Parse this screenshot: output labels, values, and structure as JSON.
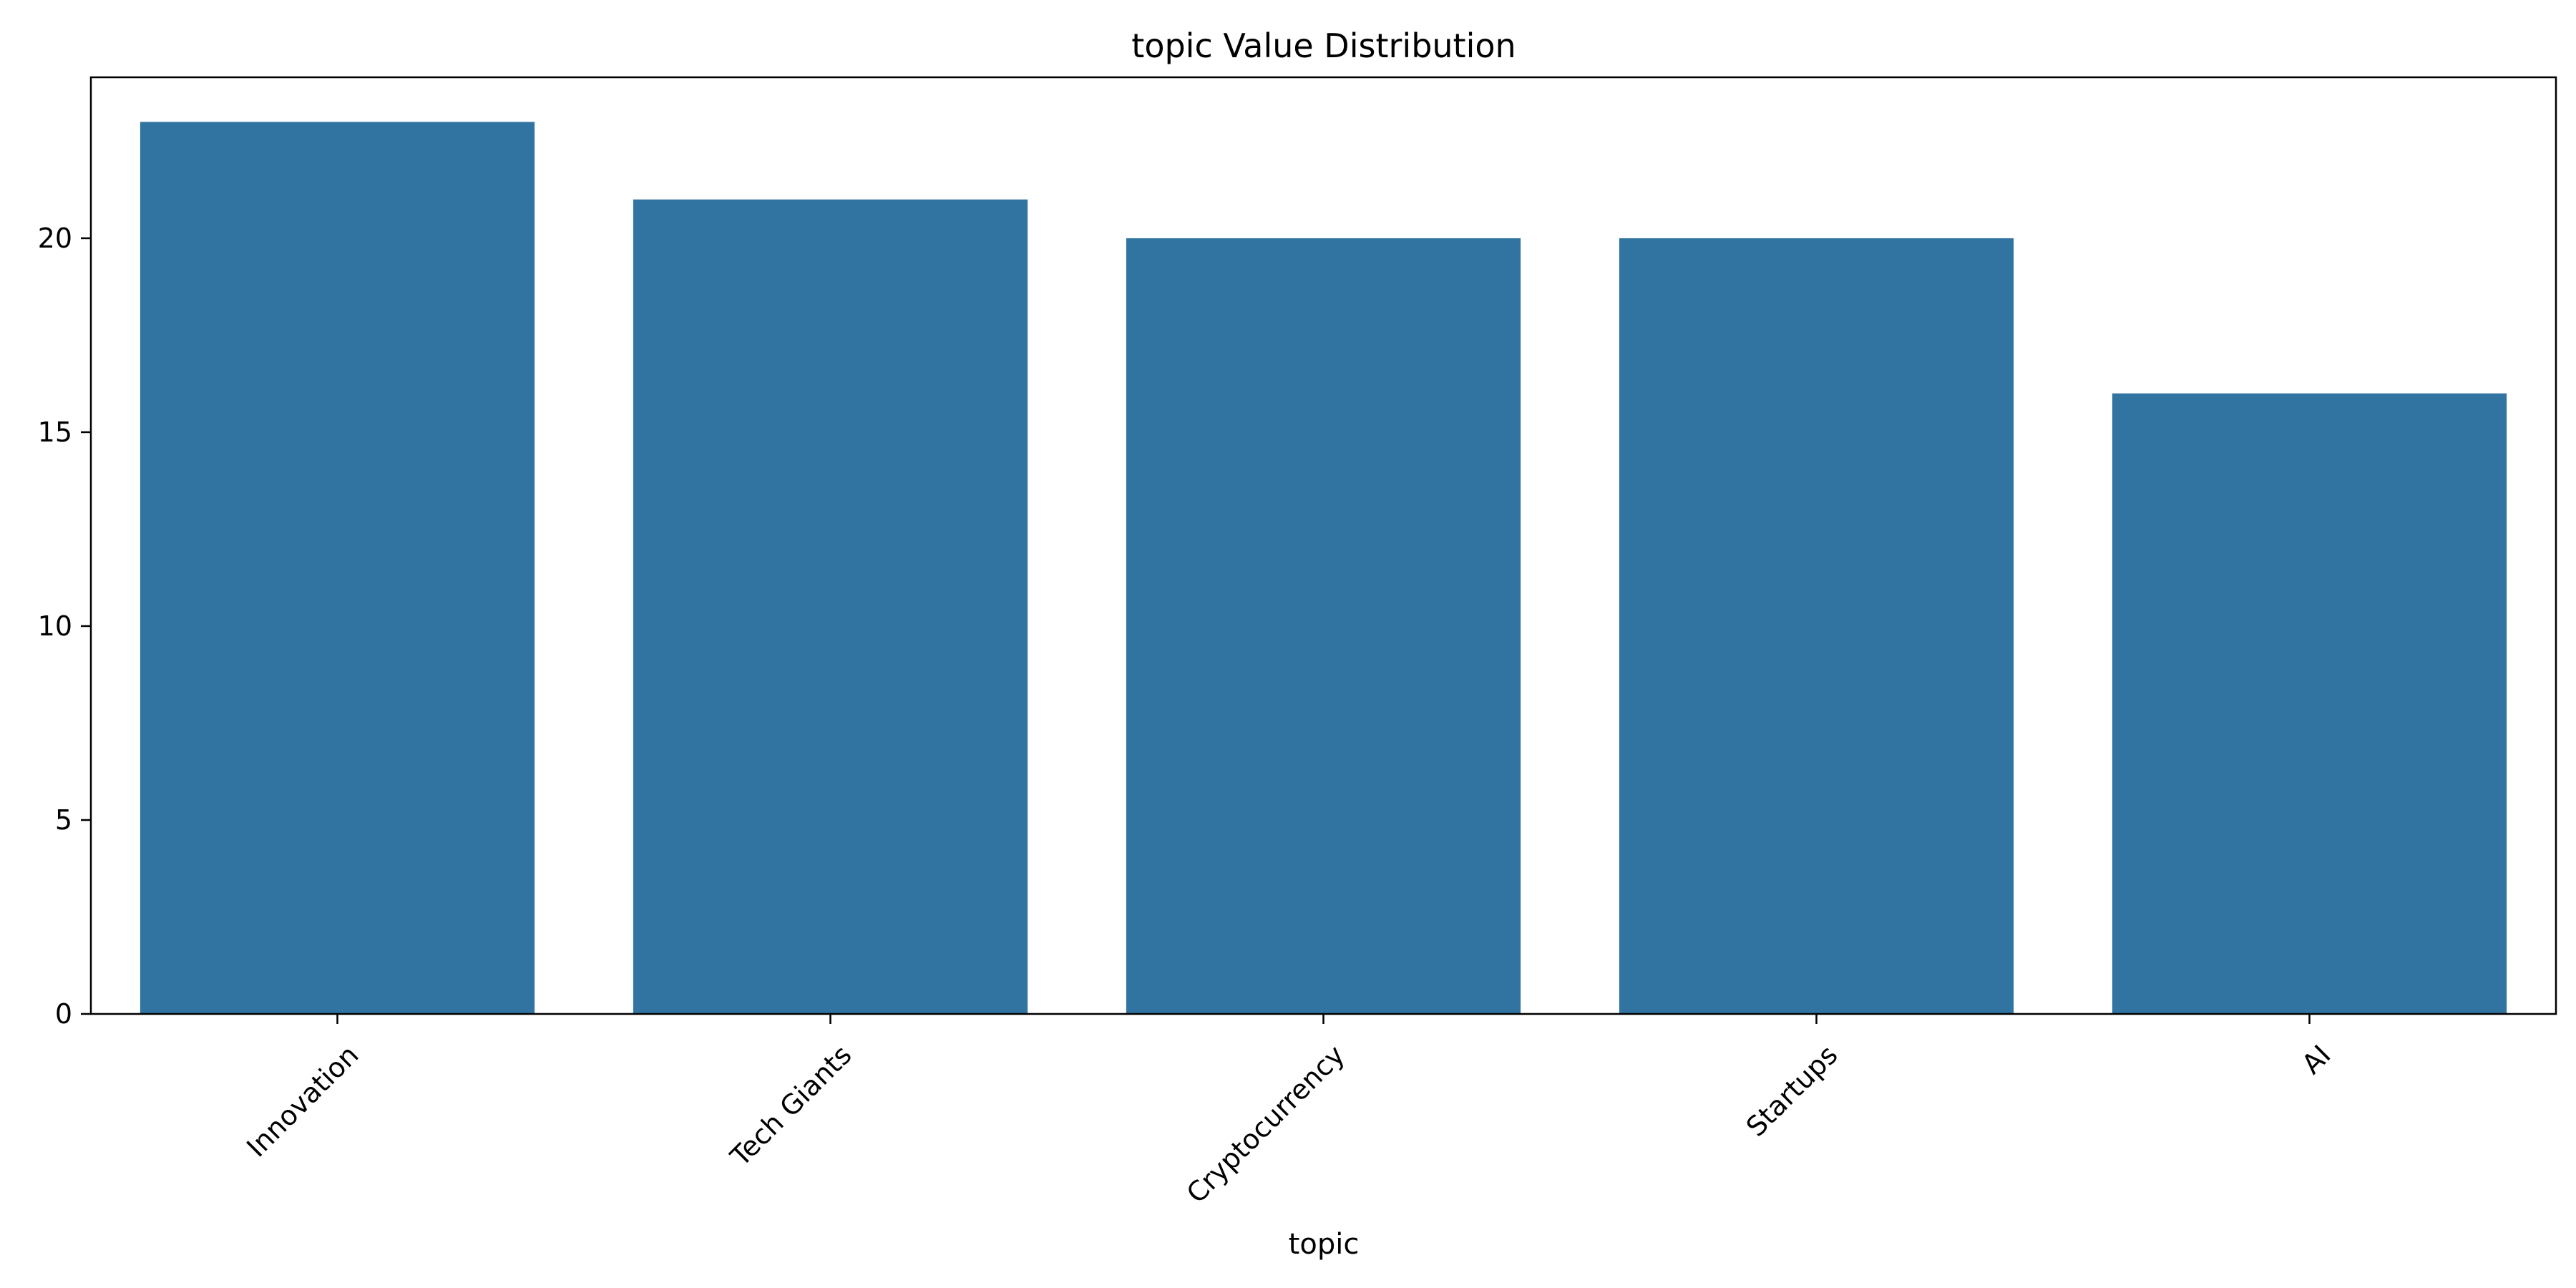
{
  "chart_data": {
    "type": "bar",
    "title": "topic Value Distribution",
    "xlabel": "topic",
    "ylabel": "",
    "categories": [
      "Innovation",
      "Tech Giants",
      "Cryptocurrency",
      "Startups",
      "AI"
    ],
    "values": [
      23,
      21,
      20,
      20,
      16
    ],
    "ylim": [
      0,
      24.15
    ],
    "yticks": [
      0,
      5,
      10,
      15,
      20
    ],
    "grid": false,
    "bar_color": "#3274a1"
  }
}
